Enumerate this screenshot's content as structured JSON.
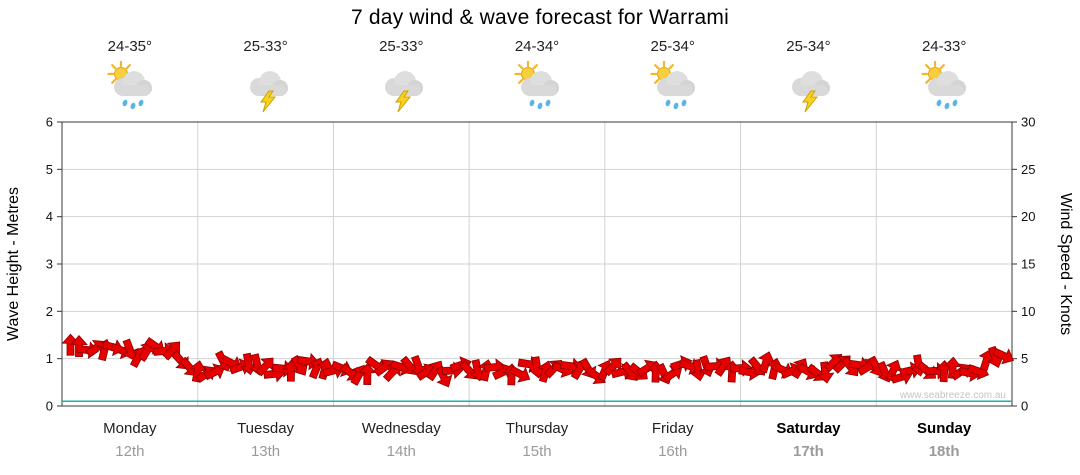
{
  "title": "7 day wind & wave forecast for Warrami",
  "watermark": "www.seabreeze.com.au",
  "days": [
    {
      "name": "Monday",
      "date": "12th",
      "temp": "24-35°",
      "icon": "sun-cloud-rain",
      "weekend": false
    },
    {
      "name": "Tuesday",
      "date": "13th",
      "temp": "25-33°",
      "icon": "cloud-lightning",
      "weekend": false
    },
    {
      "name": "Wednesday",
      "date": "14th",
      "temp": "25-33°",
      "icon": "cloud-lightning",
      "weekend": false
    },
    {
      "name": "Thursday",
      "date": "15th",
      "temp": "24-34°",
      "icon": "sun-cloud-rain",
      "weekend": false
    },
    {
      "name": "Friday",
      "date": "16th",
      "temp": "25-34°",
      "icon": "sun-cloud-rain",
      "weekend": false
    },
    {
      "name": "Saturday",
      "date": "17th",
      "temp": "25-34°",
      "icon": "cloud-lightning",
      "weekend": true
    },
    {
      "name": "Sunday",
      "date": "18th",
      "temp": "24-33°",
      "icon": "sun-cloud-rain",
      "weekend": true
    }
  ],
  "chart_data": {
    "type": "area",
    "title": "7 day wind & wave forecast for Warrami",
    "ylabel_left": "Wave Height - Metres",
    "ylabel_right": "Wind Speed - Knots",
    "left_axis": {
      "label": "Wave Height - Metres",
      "min": 0,
      "max": 6,
      "ticks": [
        0,
        1,
        2,
        3,
        4,
        5,
        6
      ]
    },
    "right_axis": {
      "label": "Wind Speed - Knots",
      "min": 0,
      "max": 30,
      "ticks": [
        0,
        5,
        10,
        15,
        20,
        25,
        30
      ]
    },
    "categories": [
      "Monday 12th",
      "Tuesday 13th",
      "Wednesday 14th",
      "Thursday 15th",
      "Friday 16th",
      "Saturday 17th",
      "Sunday 18th"
    ],
    "grid": true,
    "legend": "none",
    "series": [
      {
        "name": "Wind Speed",
        "unit": "knots",
        "color": "#e60000",
        "style": "wind-arrows",
        "points_per_day": 8,
        "values": [
          6.0,
          5.7,
          5.9,
          6.1,
          5.6,
          6.0,
          5.8,
          4.2,
          3.7,
          4.3,
          3.9,
          4.4,
          3.6,
          4.1,
          4.4,
          3.8,
          4.1,
          3.6,
          3.9,
          3.4,
          4.2,
          3.8,
          3.5,
          4.0,
          3.7,
          4.2,
          3.6,
          4.0,
          3.4,
          3.9,
          4.1,
          3.6,
          3.9,
          3.5,
          4.1,
          3.7,
          4.0,
          3.6,
          4.2,
          3.8,
          4.0,
          4.3,
          3.7,
          4.1,
          3.8,
          4.2,
          3.9,
          4.1,
          3.8,
          3.5,
          4.0,
          3.6,
          4.1,
          3.8,
          4.4,
          5.1
        ]
      },
      {
        "name": "Wave Height",
        "unit": "metres",
        "color": "#18b0b0",
        "style": "line",
        "points_per_day": 2,
        "values": [
          0.1,
          0.1,
          0.1,
          0.1,
          0.1,
          0.1,
          0.1,
          0.1,
          0.1,
          0.1,
          0.1,
          0.1,
          0.1,
          0.1
        ]
      }
    ]
  }
}
